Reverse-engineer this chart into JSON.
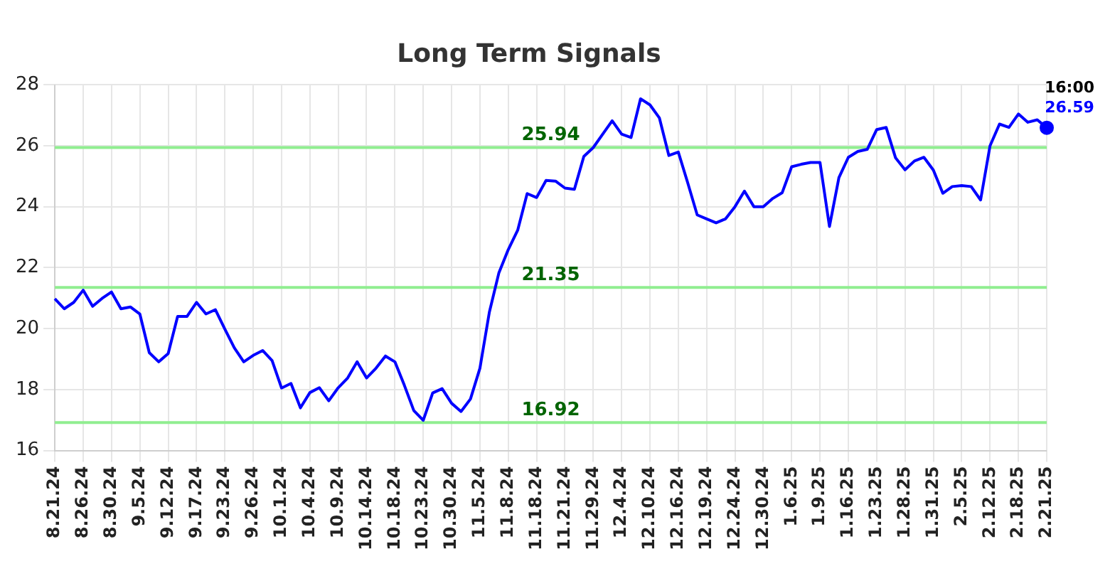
{
  "chart_data": {
    "type": "line",
    "title": "Long Term Signals",
    "categories": [
      "8.21.24",
      null,
      null,
      "8.26.24",
      null,
      null,
      "8.30.24",
      null,
      null,
      "9.5.24",
      null,
      null,
      "9.12.24",
      null,
      null,
      "9.17.24",
      null,
      null,
      "9.23.24",
      null,
      null,
      "9.26.24",
      null,
      null,
      "10.1.24",
      null,
      null,
      "10.4.24",
      null,
      null,
      "10.9.24",
      null,
      null,
      "10.14.24",
      null,
      null,
      "10.18.24",
      null,
      null,
      "10.23.24",
      null,
      null,
      "10.30.24",
      null,
      null,
      "11.5.24",
      null,
      null,
      "11.8.24",
      null,
      null,
      "11.18.24",
      null,
      null,
      "11.21.24",
      null,
      null,
      "11.29.24",
      null,
      null,
      "12.4.24",
      null,
      null,
      "12.10.24",
      null,
      null,
      "12.16.24",
      null,
      null,
      "12.19.24",
      null,
      null,
      "12.24.24",
      null,
      null,
      "12.30.24",
      null,
      null,
      "1.6.25",
      null,
      null,
      "1.9.25",
      null,
      null,
      "1.16.25",
      null,
      null,
      "1.23.25",
      null,
      null,
      "1.28.25",
      null,
      null,
      "1.31.25",
      null,
      null,
      "2.5.25",
      null,
      null,
      "2.12.25",
      null,
      null,
      "2.18.25",
      null,
      null,
      "2.21.25"
    ],
    "series": [
      {
        "color": "#0000ff",
        "values": [
          20.98,
          20.65,
          20.86,
          21.26,
          20.73,
          20.99,
          21.2,
          20.65,
          20.71,
          20.48,
          19.21,
          18.91,
          19.18,
          20.4,
          20.4,
          20.86,
          20.48,
          20.62,
          19.98,
          19.37,
          18.91,
          19.12,
          19.28,
          18.95,
          18.05,
          18.2,
          17.4,
          17.9,
          18.06,
          17.63,
          18.06,
          18.38,
          18.91,
          18.38,
          18.7,
          19.1,
          18.91,
          18.14,
          17.31,
          16.99,
          17.89,
          18.03,
          17.55,
          17.28,
          17.69,
          18.7,
          20.54,
          21.82,
          22.59,
          23.23,
          24.43,
          24.3,
          24.86,
          24.84,
          24.61,
          24.57,
          25.65,
          25.94,
          26.38,
          26.82,
          26.38,
          26.27,
          27.54,
          27.34,
          26.91,
          25.68,
          25.79,
          24.78,
          23.73,
          23.6,
          23.47,
          23.6,
          24.0,
          24.51,
          24.0,
          24.0,
          24.27,
          24.46,
          25.31,
          25.39,
          25.45,
          25.45,
          23.35,
          24.95,
          25.62,
          25.81,
          25.88,
          26.53,
          26.6,
          25.6,
          25.21,
          25.5,
          25.62,
          25.2,
          24.44,
          24.66,
          24.69,
          24.66,
          24.22,
          26.0,
          26.71,
          26.6,
          27.04,
          26.77,
          26.85,
          26.59
        ]
      },
      {
        "type": "scatter",
        "color": "#0000ff",
        "marker": "circle",
        "x": [
          "2.21.25"
        ],
        "values": [
          26.59
        ]
      }
    ],
    "ylim": [
      16,
      28
    ],
    "yticks": [
      16,
      18,
      20,
      22,
      24,
      26,
      28
    ],
    "grid": true,
    "marker": "none",
    "ref_lines": [
      {
        "axis": "y",
        "value": 25.94,
        "label": "25.94",
        "color": "#90ee90"
      },
      {
        "axis": "y",
        "value": 21.35,
        "label": "21.35",
        "color": "#90ee90"
      },
      {
        "axis": "y",
        "value": 16.92,
        "label": "16.92",
        "color": "#90ee90"
      }
    ],
    "annotations": [
      "16:00",
      "26.59"
    ]
  }
}
